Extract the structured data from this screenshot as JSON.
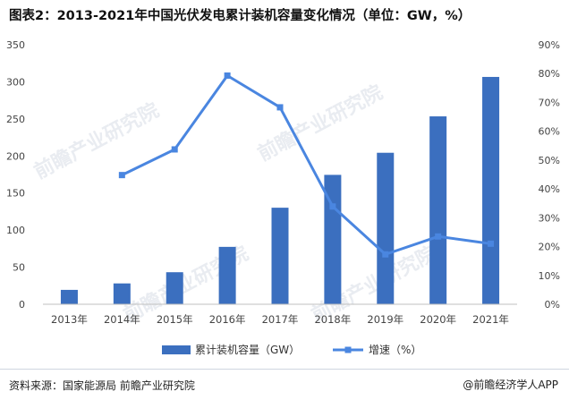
{
  "title": "图表2：2013-2021年中国光伏发电累计装机容量变化情况（单位：GW，%）",
  "footer": {
    "source": "资料来源：国家能源局 前瞻产业研究院",
    "brand": "@前瞻经济学人APP"
  },
  "watermark": "前瞻产业研究院",
  "colors": {
    "bar": "#3b6fbf",
    "line": "#4a86e0",
    "axis_text": "#444444",
    "grid": "#e6e6e6"
  },
  "chart_data": {
    "type": "bar",
    "categories": [
      "2013年",
      "2014年",
      "2015年",
      "2016年",
      "2017年",
      "2018年",
      "2019年",
      "2020年",
      "2021年"
    ],
    "series": [
      {
        "name": "累计装机容量（GW）",
        "type": "bar",
        "axis": "left",
        "values": [
          19.4,
          28.1,
          43.2,
          77.4,
          130.2,
          174.5,
          204.3,
          253.4,
          306.6
        ]
      },
      {
        "name": "增速（%）",
        "type": "line",
        "axis": "right",
        "values": [
          null,
          44.8,
          53.7,
          79.3,
          68.3,
          33.9,
          17.3,
          23.5,
          21.0
        ]
      }
    ],
    "y_left": {
      "min": 0,
      "max": 350,
      "ticks": [
        "0",
        "50",
        "100",
        "150",
        "200",
        "250",
        "300",
        "350"
      ]
    },
    "y_right": {
      "min": 0,
      "max": 90,
      "ticks": [
        "0%",
        "10%",
        "20%",
        "30%",
        "40%",
        "50%",
        "60%",
        "70%",
        "80%",
        "90%"
      ]
    },
    "grid": false,
    "legend_position": "bottom"
  }
}
